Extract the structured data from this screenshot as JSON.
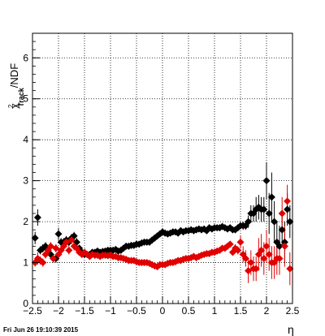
{
  "chart_data": {
    "type": "scatter",
    "title": "",
    "xlabel": "η",
    "ylabel": {
      "base": "χ",
      "sup": "2",
      "sub": "Track",
      "suffix": "/NDF"
    },
    "xlim": [
      -2.5,
      2.5
    ],
    "ylim": [
      0,
      6.6
    ],
    "x_ticks": [
      "−2.5",
      "−2",
      "−1.5",
      "−1",
      "−0.5",
      "0",
      "0.5",
      "1",
      "1.5",
      "2",
      "2.5"
    ],
    "x_tick_values": [
      -2.5,
      -2,
      -1.5,
      -1,
      -0.5,
      0,
      0.5,
      1,
      1.5,
      2,
      2.5
    ],
    "y_ticks": [
      "0",
      "1",
      "2",
      "3",
      "4",
      "5",
      "6"
    ],
    "y_tick_values": [
      0,
      1,
      2,
      3,
      4,
      5,
      6
    ],
    "grid": true,
    "timestamp": "Fri Jun 26 19:10:39 2015",
    "series": [
      {
        "color": "#000000",
        "x": [
          -2.45,
          -2.4,
          -2.35,
          -2.3,
          -2.25,
          -2.2,
          -2.15,
          -2.1,
          -2.05,
          -2.0,
          -1.95,
          -1.9,
          -1.85,
          -1.8,
          -1.75,
          -1.7,
          -1.65,
          -1.6,
          -1.55,
          -1.5,
          -1.45,
          -1.4,
          -1.35,
          -1.3,
          -1.25,
          -1.2,
          -1.15,
          -1.1,
          -1.05,
          -1.0,
          -0.95,
          -0.9,
          -0.85,
          -0.8,
          -0.75,
          -0.7,
          -0.65,
          -0.6,
          -0.55,
          -0.5,
          -0.45,
          -0.4,
          -0.35,
          -0.3,
          -0.25,
          -0.2,
          -0.15,
          -0.1,
          -0.05,
          0.0,
          0.05,
          0.1,
          0.15,
          0.2,
          0.25,
          0.3,
          0.35,
          0.4,
          0.45,
          0.5,
          0.55,
          0.6,
          0.65,
          0.7,
          0.75,
          0.8,
          0.85,
          0.9,
          0.95,
          1.0,
          1.05,
          1.1,
          1.15,
          1.2,
          1.25,
          1.3,
          1.35,
          1.4,
          1.45,
          1.5,
          1.55,
          1.6,
          1.65,
          1.7,
          1.75,
          1.8,
          1.85,
          1.9,
          1.95,
          2.0,
          2.05,
          2.1,
          2.15,
          2.2,
          2.25,
          2.3,
          2.35,
          2.4,
          2.45
        ],
        "y": [
          1.6,
          2.1,
          1.3,
          1.35,
          1.4,
          1.3,
          1.2,
          1.1,
          1.1,
          1.7,
          1.5,
          1.5,
          1.55,
          1.5,
          1.6,
          1.65,
          1.5,
          1.35,
          1.25,
          1.2,
          1.2,
          1.2,
          1.25,
          1.25,
          1.28,
          1.25,
          1.27,
          1.28,
          1.3,
          1.3,
          1.3,
          1.32,
          1.28,
          1.3,
          1.35,
          1.4,
          1.4,
          1.42,
          1.42,
          1.45,
          1.45,
          1.48,
          1.5,
          1.5,
          1.5,
          1.55,
          1.6,
          1.65,
          1.7,
          1.75,
          1.72,
          1.7,
          1.72,
          1.75,
          1.75,
          1.72,
          1.78,
          1.75,
          1.78,
          1.78,
          1.8,
          1.78,
          1.8,
          1.82,
          1.8,
          1.82,
          1.78,
          1.85,
          1.82,
          1.85,
          1.85,
          1.85,
          1.88,
          1.85,
          1.82,
          1.85,
          1.8,
          1.8,
          1.85,
          1.9,
          1.9,
          1.9,
          2.0,
          2.2,
          2.2,
          2.3,
          2.35,
          2.3,
          2.3,
          3.0,
          2.2,
          2.6,
          2.0,
          1.5,
          1.4,
          1.8,
          1.5,
          2.3,
          2.0
        ],
        "yerr": [
          0.15,
          0.2,
          0.1,
          0.1,
          0.1,
          0.1,
          0.1,
          0.1,
          0.1,
          0.15,
          0.1,
          0.1,
          0.1,
          0.1,
          0.1,
          0.1,
          0.1,
          0.05,
          0.05,
          0.05,
          0.05,
          0.05,
          0.05,
          0.05,
          0.05,
          0.05,
          0.05,
          0.05,
          0.05,
          0.05,
          0.05,
          0.05,
          0.05,
          0.05,
          0.05,
          0.05,
          0.05,
          0.05,
          0.05,
          0.05,
          0.05,
          0.05,
          0.05,
          0.05,
          0.05,
          0.05,
          0.05,
          0.05,
          0.05,
          0.05,
          0.05,
          0.05,
          0.05,
          0.05,
          0.05,
          0.05,
          0.05,
          0.05,
          0.05,
          0.05,
          0.05,
          0.05,
          0.05,
          0.05,
          0.05,
          0.05,
          0.05,
          0.05,
          0.05,
          0.05,
          0.05,
          0.05,
          0.05,
          0.05,
          0.05,
          0.05,
          0.05,
          0.05,
          0.05,
          0.08,
          0.1,
          0.1,
          0.15,
          0.2,
          0.2,
          0.3,
          0.3,
          0.3,
          0.3,
          0.45,
          0.5,
          0.6,
          0.5,
          0.5,
          0.5,
          0.4,
          0.5,
          0.4,
          0.4
        ]
      },
      {
        "color": "#e00000",
        "x": [
          -2.45,
          -2.4,
          -2.35,
          -2.3,
          -2.25,
          -2.2,
          -2.15,
          -2.1,
          -2.05,
          -2.0,
          -1.95,
          -1.9,
          -1.85,
          -1.8,
          -1.75,
          -1.7,
          -1.65,
          -1.6,
          -1.55,
          -1.5,
          -1.45,
          -1.4,
          -1.35,
          -1.3,
          -1.25,
          -1.2,
          -1.15,
          -1.1,
          -1.05,
          -1.0,
          -0.95,
          -0.9,
          -0.85,
          -0.8,
          -0.75,
          -0.7,
          -0.65,
          -0.6,
          -0.55,
          -0.5,
          -0.45,
          -0.4,
          -0.35,
          -0.3,
          -0.25,
          -0.2,
          -0.15,
          -0.1,
          -0.05,
          0.0,
          0.05,
          0.1,
          0.15,
          0.2,
          0.25,
          0.3,
          0.35,
          0.4,
          0.45,
          0.5,
          0.55,
          0.6,
          0.65,
          0.7,
          0.75,
          0.8,
          0.85,
          0.9,
          0.95,
          1.0,
          1.05,
          1.1,
          1.15,
          1.2,
          1.25,
          1.3,
          1.35,
          1.4,
          1.45,
          1.5,
          1.55,
          1.6,
          1.65,
          1.7,
          1.75,
          1.8,
          1.85,
          1.9,
          1.95,
          2.0,
          2.05,
          2.1,
          2.15,
          2.2,
          2.25,
          2.3,
          2.35,
          2.4,
          2.45
        ],
        "y": [
          1.0,
          1.1,
          1.05,
          1.0,
          1.2,
          1.3,
          1.4,
          1.1,
          1.35,
          1.2,
          1.3,
          1.4,
          1.5,
          1.3,
          1.55,
          1.4,
          1.35,
          1.25,
          1.2,
          1.25,
          1.2,
          1.15,
          1.2,
          1.18,
          1.18,
          1.15,
          1.18,
          1.18,
          1.17,
          1.18,
          1.15,
          1.15,
          1.12,
          1.12,
          1.1,
          1.08,
          1.05,
          1.05,
          1.05,
          1.02,
          1.0,
          1.0,
          1.0,
          1.0,
          0.98,
          0.95,
          0.92,
          0.9,
          0.95,
          0.95,
          0.95,
          0.98,
          1.0,
          1.0,
          1.02,
          1.05,
          1.05,
          1.08,
          1.1,
          1.1,
          1.12,
          1.15,
          1.12,
          1.15,
          1.18,
          1.2,
          1.22,
          1.22,
          1.25,
          1.25,
          1.28,
          1.3,
          1.35,
          1.35,
          1.4,
          1.45,
          1.25,
          1.35,
          1.3,
          1.5,
          1.2,
          1.1,
          0.8,
          1.0,
          0.85,
          0.85,
          1.2,
          1.3,
          1.1,
          1.4,
          1.2,
          1.0,
          1.0,
          1.1,
          1.1,
          2.2,
          1.4,
          2.5,
          0.85
        ],
        "yerr": [
          0.1,
          0.15,
          0.1,
          0.1,
          0.1,
          0.1,
          0.1,
          0.1,
          0.1,
          0.1,
          0.1,
          0.1,
          0.1,
          0.1,
          0.1,
          0.1,
          0.05,
          0.05,
          0.05,
          0.05,
          0.05,
          0.05,
          0.05,
          0.05,
          0.05,
          0.05,
          0.05,
          0.05,
          0.05,
          0.05,
          0.05,
          0.05,
          0.05,
          0.05,
          0.05,
          0.05,
          0.05,
          0.05,
          0.05,
          0.05,
          0.05,
          0.05,
          0.05,
          0.05,
          0.05,
          0.05,
          0.05,
          0.05,
          0.05,
          0.05,
          0.05,
          0.05,
          0.05,
          0.05,
          0.05,
          0.05,
          0.05,
          0.05,
          0.05,
          0.05,
          0.05,
          0.05,
          0.05,
          0.05,
          0.05,
          0.05,
          0.05,
          0.05,
          0.05,
          0.05,
          0.05,
          0.05,
          0.05,
          0.05,
          0.05,
          0.05,
          0.05,
          0.1,
          0.1,
          0.15,
          0.2,
          0.2,
          0.3,
          0.3,
          0.3,
          0.3,
          0.4,
          0.4,
          0.4,
          0.4,
          0.4,
          0.4,
          0.4,
          0.4,
          0.4,
          0.4,
          0.5,
          0.4,
          0.4
        ]
      }
    ]
  }
}
